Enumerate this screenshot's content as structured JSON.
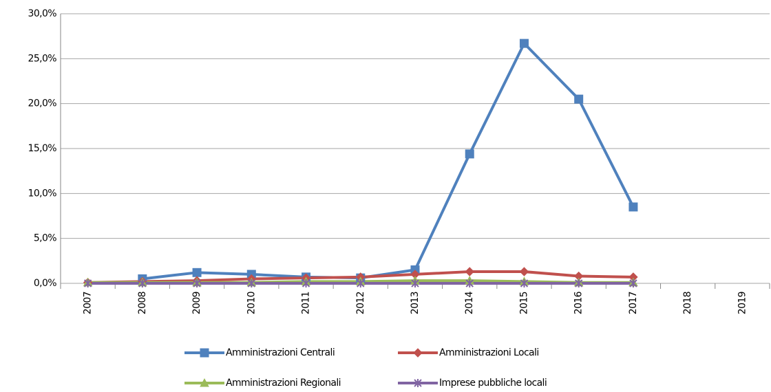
{
  "chart_data": {
    "type": "line",
    "categories": [
      "2007",
      "2008",
      "2009",
      "2010",
      "2011",
      "2012",
      "2013",
      "2014",
      "2015",
      "2016",
      "2017",
      "2018",
      "2019"
    ],
    "series": [
      {
        "name": "Amministrazioni Centrali",
        "color": "#4f81bd",
        "marker": "square",
        "values": [
          null,
          0.5,
          1.2,
          1.0,
          0.7,
          0.6,
          1.5,
          14.4,
          26.7,
          20.5,
          8.5,
          null,
          null
        ]
      },
      {
        "name": "Amministrazioni Locali",
        "color": "#c0504d",
        "marker": "diamond",
        "values": [
          0.1,
          0.2,
          0.3,
          0.5,
          0.6,
          0.7,
          1.0,
          1.3,
          1.3,
          0.8,
          0.7,
          null,
          null
        ]
      },
      {
        "name": "Amministrazioni Regionali",
        "color": "#9bbb59",
        "marker": "triangle",
        "values": [
          0.1,
          0.1,
          0.1,
          0.1,
          0.2,
          0.2,
          0.3,
          0.3,
          0.2,
          0.1,
          0.1,
          null,
          null
        ]
      },
      {
        "name": "Imprese pubbliche locali",
        "color": "#8064a2",
        "marker": "cross",
        "values": [
          0,
          0,
          0,
          0,
          0,
          0,
          0,
          0,
          0,
          0,
          0,
          null,
          null
        ]
      }
    ],
    "ylim": [
      0,
      30
    ],
    "yticks": [
      {
        "value": 0,
        "label": "0,0%"
      },
      {
        "value": 5,
        "label": "5,0%"
      },
      {
        "value": 10,
        "label": "10,0%"
      },
      {
        "value": 15,
        "label": "15,0%"
      },
      {
        "value": 20,
        "label": "20,0%"
      },
      {
        "value": 25,
        "label": "25,0%"
      },
      {
        "value": 30,
        "label": "30,0%"
      }
    ],
    "grid": true
  }
}
